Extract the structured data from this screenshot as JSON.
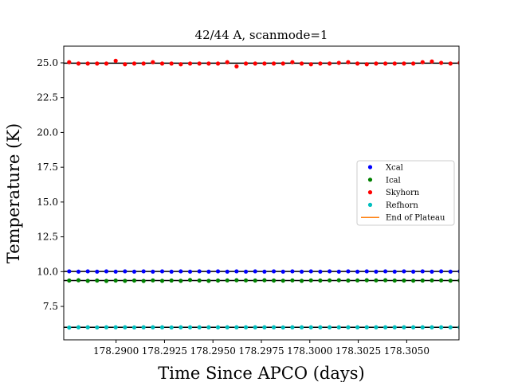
{
  "chart_data": {
    "type": "scatter",
    "title": "42/44 A, scanmode=1",
    "xlabel": "Time Since APCO (days)",
    "ylabel": "Temperature (K)",
    "xlim": [
      178.2873,
      178.3077
    ],
    "ylim": [
      5.1,
      26.2
    ],
    "xticks": [
      "178.2900",
      "178.2925",
      "178.2950",
      "178.2975",
      "178.3000",
      "178.3025",
      "178.3050"
    ],
    "yticks": [
      "7.5",
      "10.0",
      "12.5",
      "15.0",
      "17.5",
      "20.0",
      "22.5",
      "25.0"
    ],
    "legend_position": "center-right",
    "sample_x_start": 178.2871,
    "sample_x_step": 0.00048,
    "sample_count": 44,
    "series": [
      {
        "name": "Xcal",
        "color": "#0000ff",
        "kind": "points",
        "values": [
          10.0,
          10.02,
          10.0,
          10.02,
          10.0,
          10.02,
          10.0,
          10.02,
          10.0,
          10.02,
          10.0,
          10.02,
          10.0,
          10.02,
          10.0,
          10.02,
          10.0,
          10.02,
          10.0,
          10.02,
          10.0,
          10.02,
          10.0,
          10.02,
          10.0,
          10.02,
          10.0,
          10.02,
          10.0,
          10.02,
          10.0,
          10.02,
          10.0,
          10.02,
          10.0,
          10.02,
          10.0,
          10.02,
          10.0,
          10.02,
          10.0,
          10.02,
          10.0,
          10.02
        ],
        "fit": 10.01
      },
      {
        "name": "Ical",
        "color": "#008000",
        "kind": "points",
        "values": [
          9.32,
          9.36,
          9.38,
          9.34,
          9.36,
          9.33,
          9.36,
          9.34,
          9.36,
          9.33,
          9.37,
          9.34,
          9.36,
          9.34,
          9.4,
          9.36,
          9.34,
          9.36,
          9.37,
          9.38,
          9.37,
          9.36,
          9.38,
          9.36,
          9.35,
          9.37,
          9.34,
          9.37,
          9.36,
          9.37,
          9.38,
          9.36,
          9.37,
          9.38,
          9.37,
          9.38,
          9.36,
          9.36,
          9.35,
          9.36,
          9.37,
          9.37,
          9.35,
          9.36
        ],
        "fit": 9.36
      },
      {
        "name": "Skyhorn",
        "color": "#ff0000",
        "kind": "points",
        "values": [
          25.0,
          25.05,
          24.95,
          24.95,
          24.95,
          24.95,
          25.15,
          24.9,
          24.95,
          24.95,
          25.05,
          24.95,
          24.95,
          24.9,
          24.95,
          24.95,
          24.95,
          24.95,
          25.05,
          24.75,
          24.95,
          24.95,
          24.95,
          24.95,
          24.95,
          25.05,
          24.95,
          24.9,
          24.95,
          24.95,
          25.0,
          25.05,
          24.95,
          24.9,
          24.95,
          24.95,
          24.95,
          24.95,
          24.95,
          25.05,
          25.1,
          25.0,
          24.95,
          25.0
        ],
        "fit": 24.98
      },
      {
        "name": "Refhorn",
        "color": "#00bfbf",
        "kind": "points",
        "values": [
          6.0,
          5.98,
          6.0,
          6.0,
          5.99,
          6.0,
          6.0,
          6.0,
          5.99,
          6.0,
          6.0,
          6.0,
          5.99,
          6.0,
          6.0,
          6.0,
          6.0,
          6.0,
          6.0,
          6.0,
          6.0,
          6.0,
          6.0,
          6.0,
          5.99,
          6.0,
          6.0,
          6.0,
          6.0,
          6.0,
          6.0,
          6.0,
          6.0,
          6.0,
          6.0,
          6.0,
          6.0,
          6.0,
          6.0,
          6.0,
          6.0,
          6.0,
          6.0,
          6.0
        ],
        "fit": 6.0
      },
      {
        "name": "End of Plateau",
        "color": "#ff7f0e",
        "kind": "line",
        "values": []
      }
    ]
  }
}
